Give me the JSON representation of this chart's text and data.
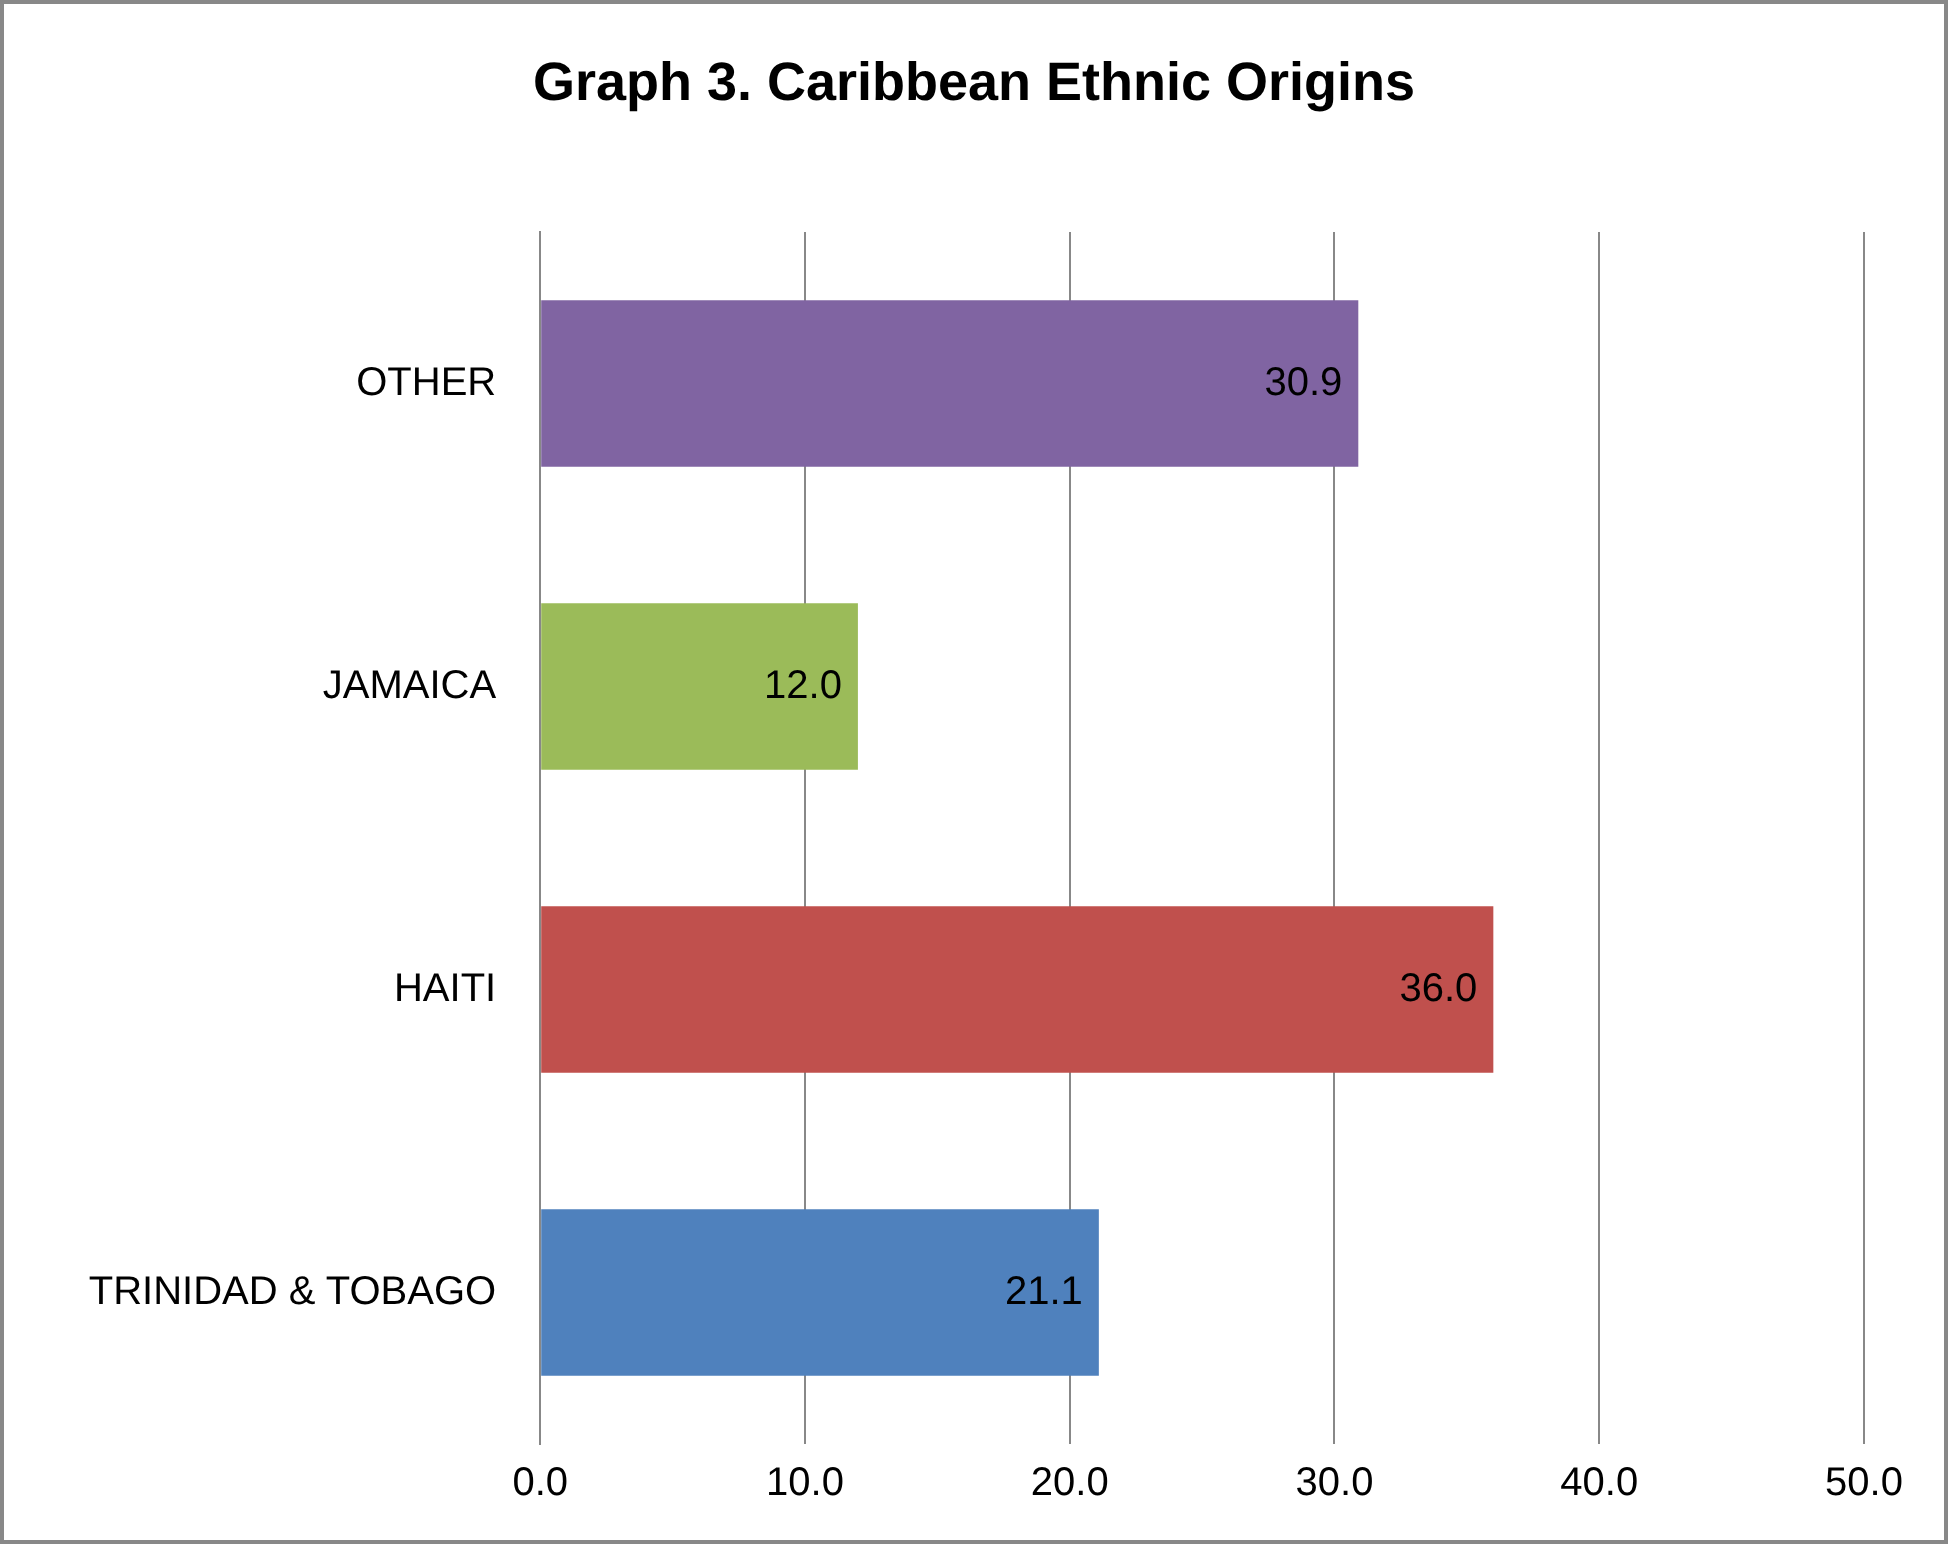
{
  "chart_data": {
    "type": "bar",
    "orientation": "horizontal",
    "title": "Graph 3. Caribbean Ethnic Origins",
    "categories": [
      "OTHER",
      "JAMAICA",
      "HAITI",
      "TRINIDAD & TOBAGO"
    ],
    "values": [
      30.9,
      12.0,
      36.0,
      21.1
    ],
    "colors": [
      "#8064a2",
      "#9bbb59",
      "#c0504d",
      "#4f81bd"
    ],
    "value_labels": [
      "30.9",
      "12.0",
      "36.0",
      "21.1"
    ],
    "xlim": [
      0,
      50
    ],
    "xticks": [
      {
        "value": 0,
        "label": "0.0"
      },
      {
        "value": 10,
        "label": "10.0"
      },
      {
        "value": 20,
        "label": "20.0"
      },
      {
        "value": 30,
        "label": "30.0"
      },
      {
        "value": 40,
        "label": "40.0"
      },
      {
        "value": 50,
        "label": "50.0"
      }
    ],
    "grid": "x",
    "legend": false
  }
}
